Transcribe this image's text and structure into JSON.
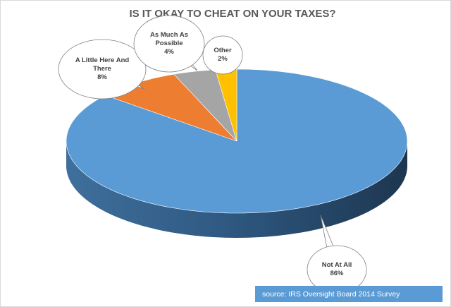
{
  "chart_data": {
    "type": "pie",
    "title": "IS IT OKAY TO CHEAT ON YOUR TAXES?",
    "categories": [
      "Not At All",
      "A Little Here And There",
      "As Much As Possible",
      "Other"
    ],
    "values": [
      86,
      8,
      4,
      2
    ],
    "value_labels": [
      "86%",
      "8%",
      "4%",
      "2%"
    ],
    "colors": [
      "#5b9bd5",
      "#ed7d31",
      "#a5a5a5",
      "#ffc000"
    ],
    "source": "source: IRS Oversight Board 2014 Survey"
  }
}
